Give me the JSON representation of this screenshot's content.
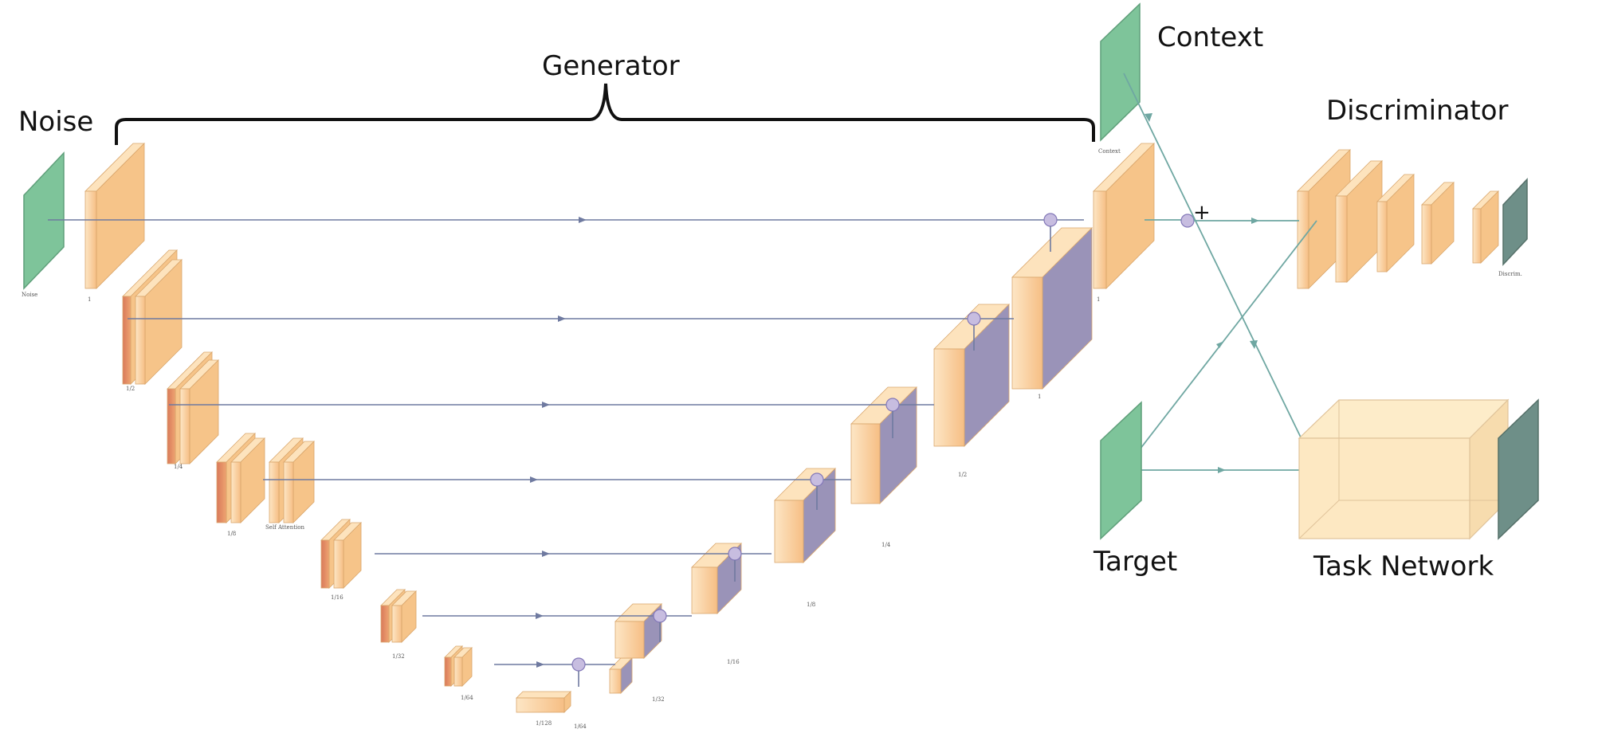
{
  "labels": {
    "noise": "Noise",
    "generator": "Generator",
    "context": "Context",
    "discriminator": "Discriminator",
    "target": "Target",
    "task_network": "Task Network",
    "plus": "+"
  },
  "small_captions": {
    "noise_input": "Noise",
    "context_input": "Context",
    "self_attention": "Self Attention",
    "discriminator_output": "Discrim.",
    "scale_1": "1",
    "scale_2": "1/2",
    "scale_4": "1/4",
    "scale_8": "1/8",
    "scale_16": "1/16",
    "scale_32": "1/32",
    "scale_64": "1/64",
    "scale_128": "1/128"
  },
  "colors": {
    "input_green": "#7ec49a",
    "block_orange": "#f6c489",
    "block_dark_orange": "#e79a63",
    "block_light": "#fde3bd",
    "deconv_purple": "#9a93b8",
    "output_slate": "#6e8f88",
    "task_box": "#fde8c2",
    "skip_line": "#6f7aa0",
    "flow_line": "#6fa7a2"
  }
}
